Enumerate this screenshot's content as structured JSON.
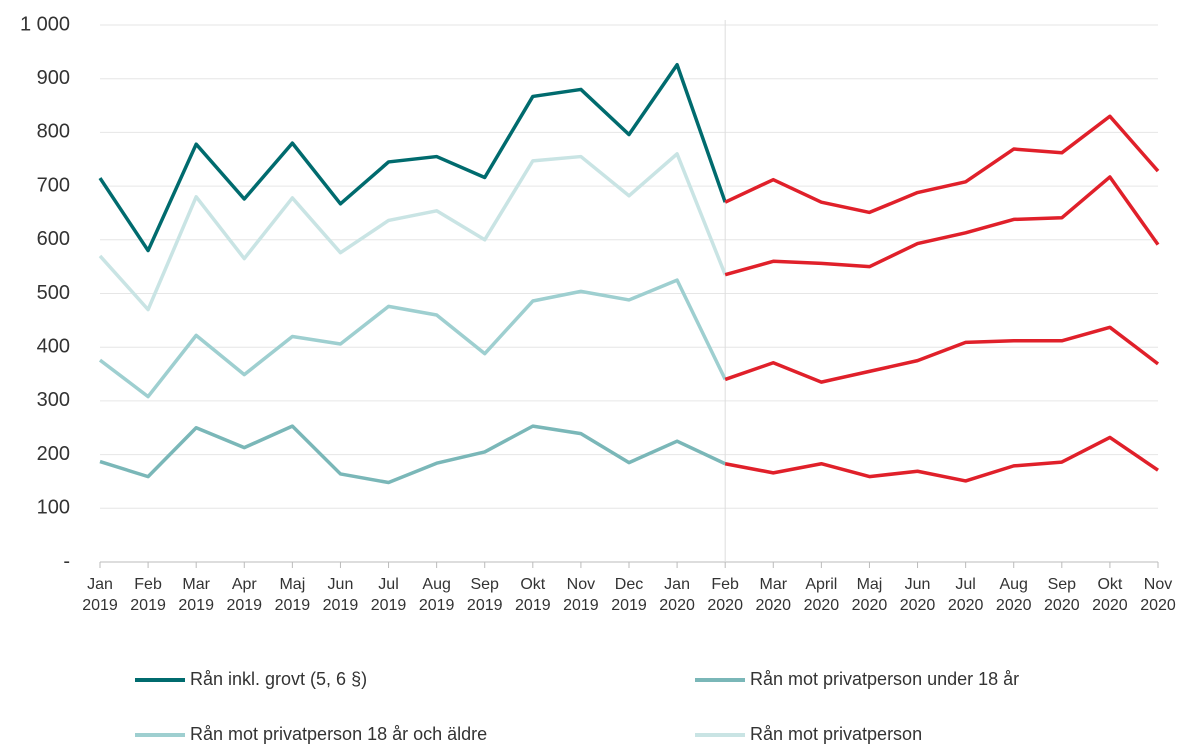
{
  "chart_data": {
    "type": "line",
    "categories": [
      "Jan 2019",
      "Feb 2019",
      "Mar 2019",
      "Apr 2019",
      "Maj 2019",
      "Jun 2019",
      "Jul 2019",
      "Aug 2019",
      "Sep 2019",
      "Okt 2019",
      "Nov 2019",
      "Dec 2019",
      "Jan 2020",
      "Feb 2020",
      "Mar 2020",
      "April 2020",
      "Maj 2020",
      "Jun 2020",
      "Jul 2020",
      "Aug 2020",
      "Sep 2020",
      "Okt 2020",
      "Nov 2020"
    ],
    "series": [
      {
        "name": "Rån inkl. grovt (5, 6 §)",
        "color": "#006b6e",
        "values": [
          715,
          580,
          778,
          676,
          780,
          667,
          745,
          755,
          716,
          867,
          880,
          796,
          926,
          670,
          712,
          670,
          651,
          688,
          708,
          769,
          762,
          830,
          728
        ]
      },
      {
        "name": "Rån mot privatperson under 18 år",
        "color": "#7ab7b8",
        "values": [
          187,
          159,
          250,
          213,
          253,
          164,
          148,
          184,
          205,
          253,
          239,
          185,
          225,
          183,
          166,
          183,
          159,
          169,
          151,
          179,
          186,
          232,
          171
        ]
      },
      {
        "name": "Rån mot privatperson 18 år och äldre",
        "color": "#9ecfd0",
        "values": [
          376,
          308,
          422,
          349,
          420,
          406,
          476,
          460,
          388,
          486,
          504,
          488,
          525,
          340,
          371,
          335,
          355,
          375,
          409,
          412,
          412,
          437,
          369
        ]
      },
      {
        "name": "Rån mot privatperson",
        "color": "#c9e4e4",
        "values": [
          570,
          470,
          680,
          565,
          678,
          576,
          636,
          654,
          600,
          747,
          755,
          682,
          760,
          535,
          560,
          556,
          550,
          593,
          613,
          638,
          641,
          717,
          591
        ]
      }
    ],
    "highlight_color": "#e0202a",
    "highlight_start": "Feb 2020",
    "ylim": [
      0,
      1000
    ],
    "yticks": [
      {
        "value": 0,
        "label": "-"
      },
      100,
      200,
      300,
      400,
      500,
      600,
      700,
      800,
      900,
      {
        "value": 1000,
        "label": "1 000"
      }
    ],
    "grid": true
  }
}
